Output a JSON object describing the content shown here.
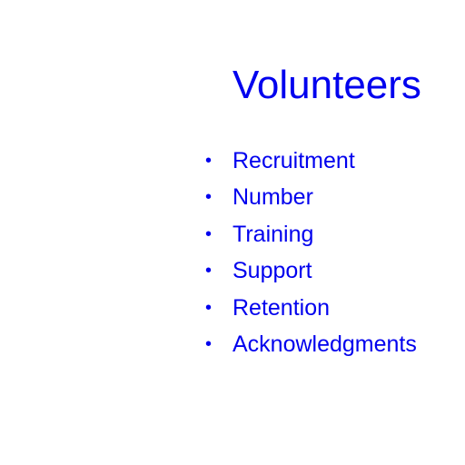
{
  "slide": {
    "title": "Volunteers",
    "bullet_symbol": "•",
    "items": [
      {
        "label": "Recruitment"
      },
      {
        "label": "Number"
      },
      {
        "label": "Training"
      },
      {
        "label": "Support"
      },
      {
        "label": "Retention"
      },
      {
        "label": "Acknowledgments"
      }
    ]
  },
  "colors": {
    "text": "#0000ee",
    "background": "#ffffff"
  }
}
